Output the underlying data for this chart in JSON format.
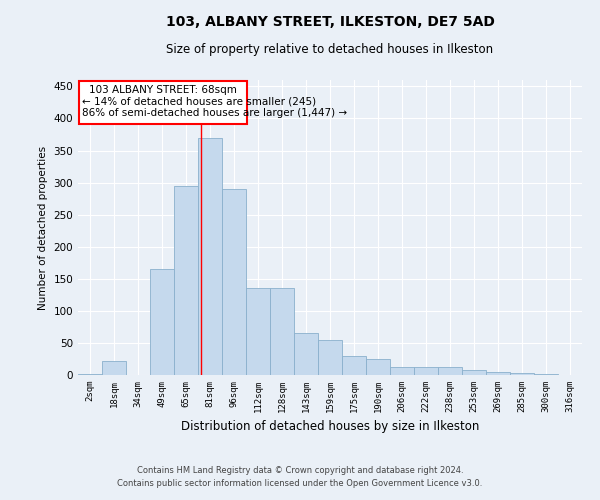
{
  "title1": "103, ALBANY STREET, ILKESTON, DE7 5AD",
  "title2": "Size of property relative to detached houses in Ilkeston",
  "xlabel": "Distribution of detached houses by size in Ilkeston",
  "ylabel": "Number of detached properties",
  "categories": [
    "2sqm",
    "18sqm",
    "34sqm",
    "49sqm",
    "65sqm",
    "81sqm",
    "96sqm",
    "112sqm",
    "128sqm",
    "143sqm",
    "159sqm",
    "175sqm",
    "190sqm",
    "206sqm",
    "222sqm",
    "238sqm",
    "253sqm",
    "269sqm",
    "285sqm",
    "300sqm",
    "316sqm"
  ],
  "values": [
    2,
    22,
    0,
    165,
    295,
    370,
    290,
    135,
    135,
    65,
    55,
    30,
    25,
    12,
    12,
    12,
    8,
    4,
    3,
    1,
    0
  ],
  "bar_color": "#c5d9ed",
  "bar_edge_color": "#8ab0cc",
  "bg_color": "#eaf0f7",
  "ann_line1": "103 ALBANY STREET: 68sqm",
  "ann_line2": "← 14% of detached houses are smaller (245)",
  "ann_line3": "86% of semi-detached houses are larger (1,447) →",
  "vline_x": 4.62,
  "ylim": [
    0,
    460
  ],
  "yticks": [
    0,
    50,
    100,
    150,
    200,
    250,
    300,
    350,
    400,
    450
  ],
  "footer_line1": "Contains HM Land Registry data © Crown copyright and database right 2024.",
  "footer_line2": "Contains public sector information licensed under the Open Government Licence v3.0."
}
